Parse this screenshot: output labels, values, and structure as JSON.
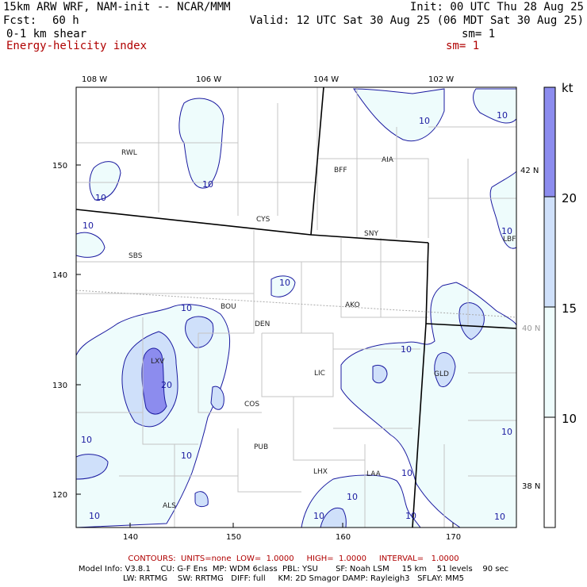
{
  "header": {
    "model_line": "15km ARW WRF, NAM-init -- NCAR/MMM",
    "init": "Init: 00 UTC Thu 28 Aug 25",
    "fcst_label": "Fcst:",
    "fcst_value": "60 h",
    "valid": "Valid: 12 UTC Sat 30 Aug 25 (06 MDT Sat 30 Aug 25)",
    "field1": "0-1 km shear",
    "field1_sm": "sm= 1",
    "field2": "Energy-helicity index",
    "field2_sm": "sm= 1"
  },
  "colors": {
    "header_red": "#b00000",
    "fill_low": "#eefcfc",
    "fill_mid": "#cfe0fa",
    "fill_high": "#8c8cee",
    "contour": "#1a1aa0"
  },
  "map": {
    "top_lon_labels": [
      "108 W",
      "106 W",
      "104 W",
      "102 W"
    ],
    "left_grid_labels": [
      "150",
      "140",
      "130",
      "120"
    ],
    "bottom_grid_labels": [
      "140",
      "150",
      "160",
      "170"
    ],
    "right_lat_labels": [
      "42 N",
      "40 N",
      "38 N"
    ],
    "stations": [
      "RWL",
      "BFF",
      "AIA",
      "CYS",
      "SNY",
      "SBS",
      "LBF",
      "BOU",
      "AKO",
      "DEN",
      "LXV",
      "LIC",
      "GLD",
      "COS",
      "PUB",
      "LHX",
      "LAA",
      "ALS"
    ],
    "contour_labels": [
      "10",
      "10",
      "10",
      "10",
      "10",
      "10",
      "10",
      "10",
      "10",
      "10",
      "10",
      "20",
      "10",
      "10",
      "10",
      "10",
      "10",
      "10",
      "10"
    ]
  },
  "colorbar": {
    "unit": "kt",
    "levels": [
      "20",
      "15",
      "10"
    ]
  },
  "footer": {
    "contours": "CONTOURS:  UNITS=none  LOW=  1.0000     HIGH=  1.0000     INTERVAL=   1.0000",
    "info1": "Model Info: V3.8.1    CU: G-F Ens  MP: WDM 6class  PBL: YSU       SF: Noah LSM     15 km    51 levels    90 sec",
    "info2": "LW: RRTMG    SW: RRTMG   DIFF: full     KM: 2D Smagor DAMP: Rayleigh3   SFLAY: MM5"
  }
}
